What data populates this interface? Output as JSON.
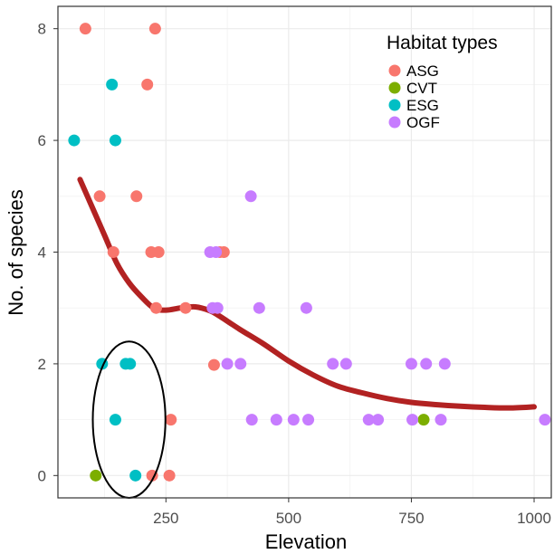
{
  "chart_data": {
    "type": "scatter",
    "title": "",
    "xlabel": "Elevation",
    "ylabel": "No. of species",
    "xlim": [
      30,
      1035
    ],
    "ylim": [
      -0.4,
      8.4
    ],
    "x_ticks": [
      250,
      500,
      750,
      1000
    ],
    "x_tick_labels": [
      "250",
      "500",
      "750",
      "1000"
    ],
    "y_ticks": [
      0,
      2,
      4,
      6,
      8
    ],
    "y_tick_labels": [
      "0",
      "2",
      "4",
      "6",
      "8"
    ],
    "grid": true,
    "legend": {
      "title": "Habitat types",
      "placement": "top-right, inside"
    },
    "series": [
      {
        "name": "ASG",
        "color": "#F8766D",
        "points": [
          [
            86,
            8
          ],
          [
            228,
            8
          ],
          [
            212,
            7
          ],
          [
            115,
            5
          ],
          [
            190,
            5
          ],
          [
            143,
            4
          ],
          [
            220,
            4
          ],
          [
            235,
            4
          ],
          [
            360,
            4
          ],
          [
            368,
            4
          ],
          [
            230,
            3
          ],
          [
            290,
            3
          ],
          [
            348,
            1.98
          ],
          [
            260,
            1
          ],
          [
            222,
            0
          ],
          [
            257,
            0
          ]
        ]
      },
      {
        "name": "CVT",
        "color": "#7CAE00",
        "points": [
          [
            107,
            0
          ],
          [
            775,
            1
          ]
        ]
      },
      {
        "name": "ESG",
        "color": "#00BFC4",
        "points": [
          [
            140,
            7
          ],
          [
            63,
            6
          ],
          [
            147,
            6
          ],
          [
            120,
            2
          ],
          [
            168,
            2
          ],
          [
            177,
            2
          ],
          [
            147,
            1
          ],
          [
            188,
            0
          ]
        ]
      },
      {
        "name": "OGF",
        "color": "#C77CFF",
        "points": [
          [
            423,
            5
          ],
          [
            340,
            4
          ],
          [
            352,
            4
          ],
          [
            345,
            3
          ],
          [
            355,
            3
          ],
          [
            440,
            3
          ],
          [
            536,
            3
          ],
          [
            375,
            2
          ],
          [
            402,
            2
          ],
          [
            590,
            2
          ],
          [
            617,
            2
          ],
          [
            750,
            2
          ],
          [
            780,
            2
          ],
          [
            818,
            2
          ],
          [
            425,
            1
          ],
          [
            475,
            1
          ],
          [
            510,
            1
          ],
          [
            540,
            1
          ],
          [
            663,
            1
          ],
          [
            682,
            1
          ],
          [
            752,
            1
          ],
          [
            810,
            1
          ],
          [
            1022,
            1
          ]
        ]
      }
    ],
    "smooth_line": {
      "color": "#B22222",
      "x": [
        75,
        100,
        125,
        150,
        175,
        200,
        225,
        250,
        280,
        310,
        340,
        360,
        400,
        450,
        500,
        550,
        600,
        650,
        700,
        750,
        800,
        850,
        900,
        950,
        1000
      ],
      "y": [
        5.3,
        4.8,
        4.3,
        3.8,
        3.45,
        3.2,
        3.0,
        2.96,
        3.0,
        3.02,
        2.95,
        2.85,
        2.62,
        2.35,
        2.05,
        1.8,
        1.6,
        1.48,
        1.38,
        1.31,
        1.27,
        1.24,
        1.22,
        1.21,
        1.23
      ]
    },
    "annotation": {
      "shape": "ellipse",
      "cx": 175,
      "cy": 1,
      "rx": 74,
      "ry": 1.4,
      "color": "#000000"
    }
  }
}
